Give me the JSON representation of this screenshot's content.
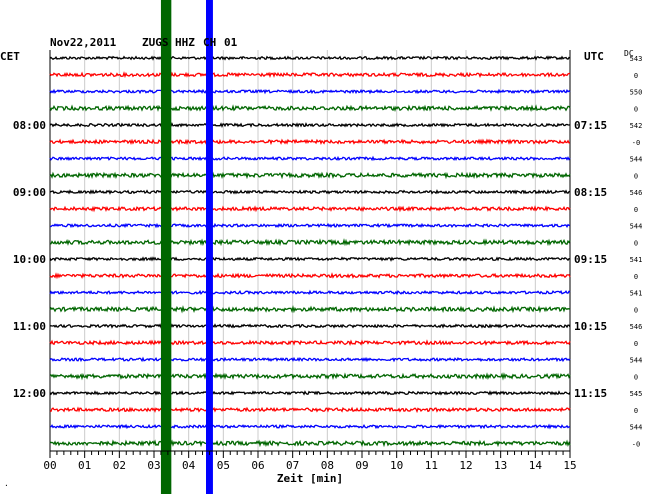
{
  "header": {
    "date": "Nov22,2011",
    "station": "ZUGS",
    "channel": "HHZ",
    "network": "CH",
    "location": "01"
  },
  "labels": {
    "left_tz": "CET",
    "right_tz": "UTC",
    "dc_label": "DC",
    "x_axis_label": "Zeit [min]",
    "footer_mark": "·"
  },
  "colors": {
    "trace_cycle": [
      "#000000",
      "#ff0000",
      "#0000ff",
      "#006600"
    ],
    "event_green": "#006600",
    "event_blue": "#0000ff",
    "grid": "#cccccc"
  },
  "chart_data": {
    "type": "line",
    "description_type": "helicorder",
    "x_ticks": [
      "00",
      "01",
      "02",
      "03",
      "04",
      "05",
      "06",
      "07",
      "08",
      "09",
      "10",
      "11",
      "12",
      "13",
      "14",
      "15"
    ],
    "x_range_min": [
      0,
      15
    ],
    "trace_count": 24,
    "left_time_labels": [
      {
        "label": "08:00",
        "trace": 4
      },
      {
        "label": "09:00",
        "trace": 8
      },
      {
        "label": "10:00",
        "trace": 12
      },
      {
        "label": "11:00",
        "trace": 16
      },
      {
        "label": "12:00",
        "trace": 20
      }
    ],
    "right_time_labels": [
      {
        "label": "07:15",
        "trace": 4
      },
      {
        "label": "08:15",
        "trace": 8
      },
      {
        "label": "09:15",
        "trace": 12
      },
      {
        "label": "10:15",
        "trace": 16
      },
      {
        "label": "11:15",
        "trace": 20
      }
    ],
    "dc_values": [
      "543",
      "0",
      "550",
      "0",
      "542",
      "-0",
      "544",
      "0",
      "546",
      "0",
      "544",
      "0",
      "541",
      "0",
      "541",
      "0",
      "546",
      "0",
      "544",
      "0",
      "545",
      "0",
      "544",
      "-0"
    ],
    "events": [
      {
        "name": "green event",
        "minute_start": 3.2,
        "minute_end": 3.5,
        "color": "#006600"
      },
      {
        "name": "blue event",
        "minute_start": 4.5,
        "minute_end": 4.7,
        "color": "#0000ff"
      }
    ]
  }
}
